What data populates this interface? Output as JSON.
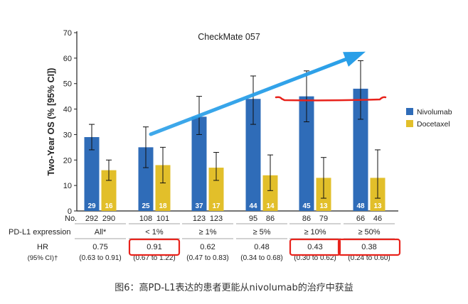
{
  "chart_data": {
    "type": "bar",
    "title": "CheckMate 057",
    "ylabel": "Two-Year OS (% [95% CI])",
    "ylim": [
      0,
      70
    ],
    "yticks": [
      0,
      10,
      20,
      30,
      40,
      50,
      60,
      70
    ],
    "groups": [
      "All*",
      "< 1%",
      "≥ 1%",
      "≥ 5%",
      "≥ 10%",
      "≥ 50%"
    ],
    "series": [
      {
        "name": "Nivolumab",
        "color": "#2f6cb8",
        "values": [
          29,
          25,
          37,
          44,
          45,
          48
        ],
        "ci_low": [
          24,
          17,
          30,
          34,
          35,
          36
        ],
        "ci_high": [
          34,
          33,
          45,
          53,
          55,
          59
        ],
        "no": [
          "292",
          "108",
          "123",
          "95",
          "86",
          "66"
        ]
      },
      {
        "name": "Docetaxel",
        "color": "#e2bf2a",
        "values": [
          16,
          18,
          17,
          14,
          13,
          13
        ],
        "ci_low": [
          12,
          11,
          12,
          8,
          5,
          5
        ],
        "ci_high": [
          20,
          25,
          23,
          22,
          21,
          24
        ],
        "no": [
          "290",
          "101",
          "123",
          "86",
          "79",
          "46"
        ]
      }
    ],
    "no_label": "No.",
    "pdl1_label": "PD-L1 expression",
    "hr_label": "HR",
    "ci_label": "(95% CI)†",
    "hr": [
      "0.75",
      "0.91",
      "0.62",
      "0.48",
      "0.43",
      "0.38"
    ],
    "hr_ci": [
      "(0.63 to 0.91)",
      "(0.67 to 1.22)",
      "(0.47 to 0.83)",
      "(0.34 to 0.68)",
      "(0.30 to 0.62)",
      "(0.24 to 0.60)"
    ],
    "highlighted_hr": [
      1,
      4,
      5
    ],
    "legend_position": "right",
    "annotation_colors": {
      "arrow": "#2a9fe8",
      "line": "#e8231c",
      "box": "#e8231c"
    }
  },
  "caption": "图6：高PD-L1表达的患者更能从nivolumab的治疗中获益"
}
